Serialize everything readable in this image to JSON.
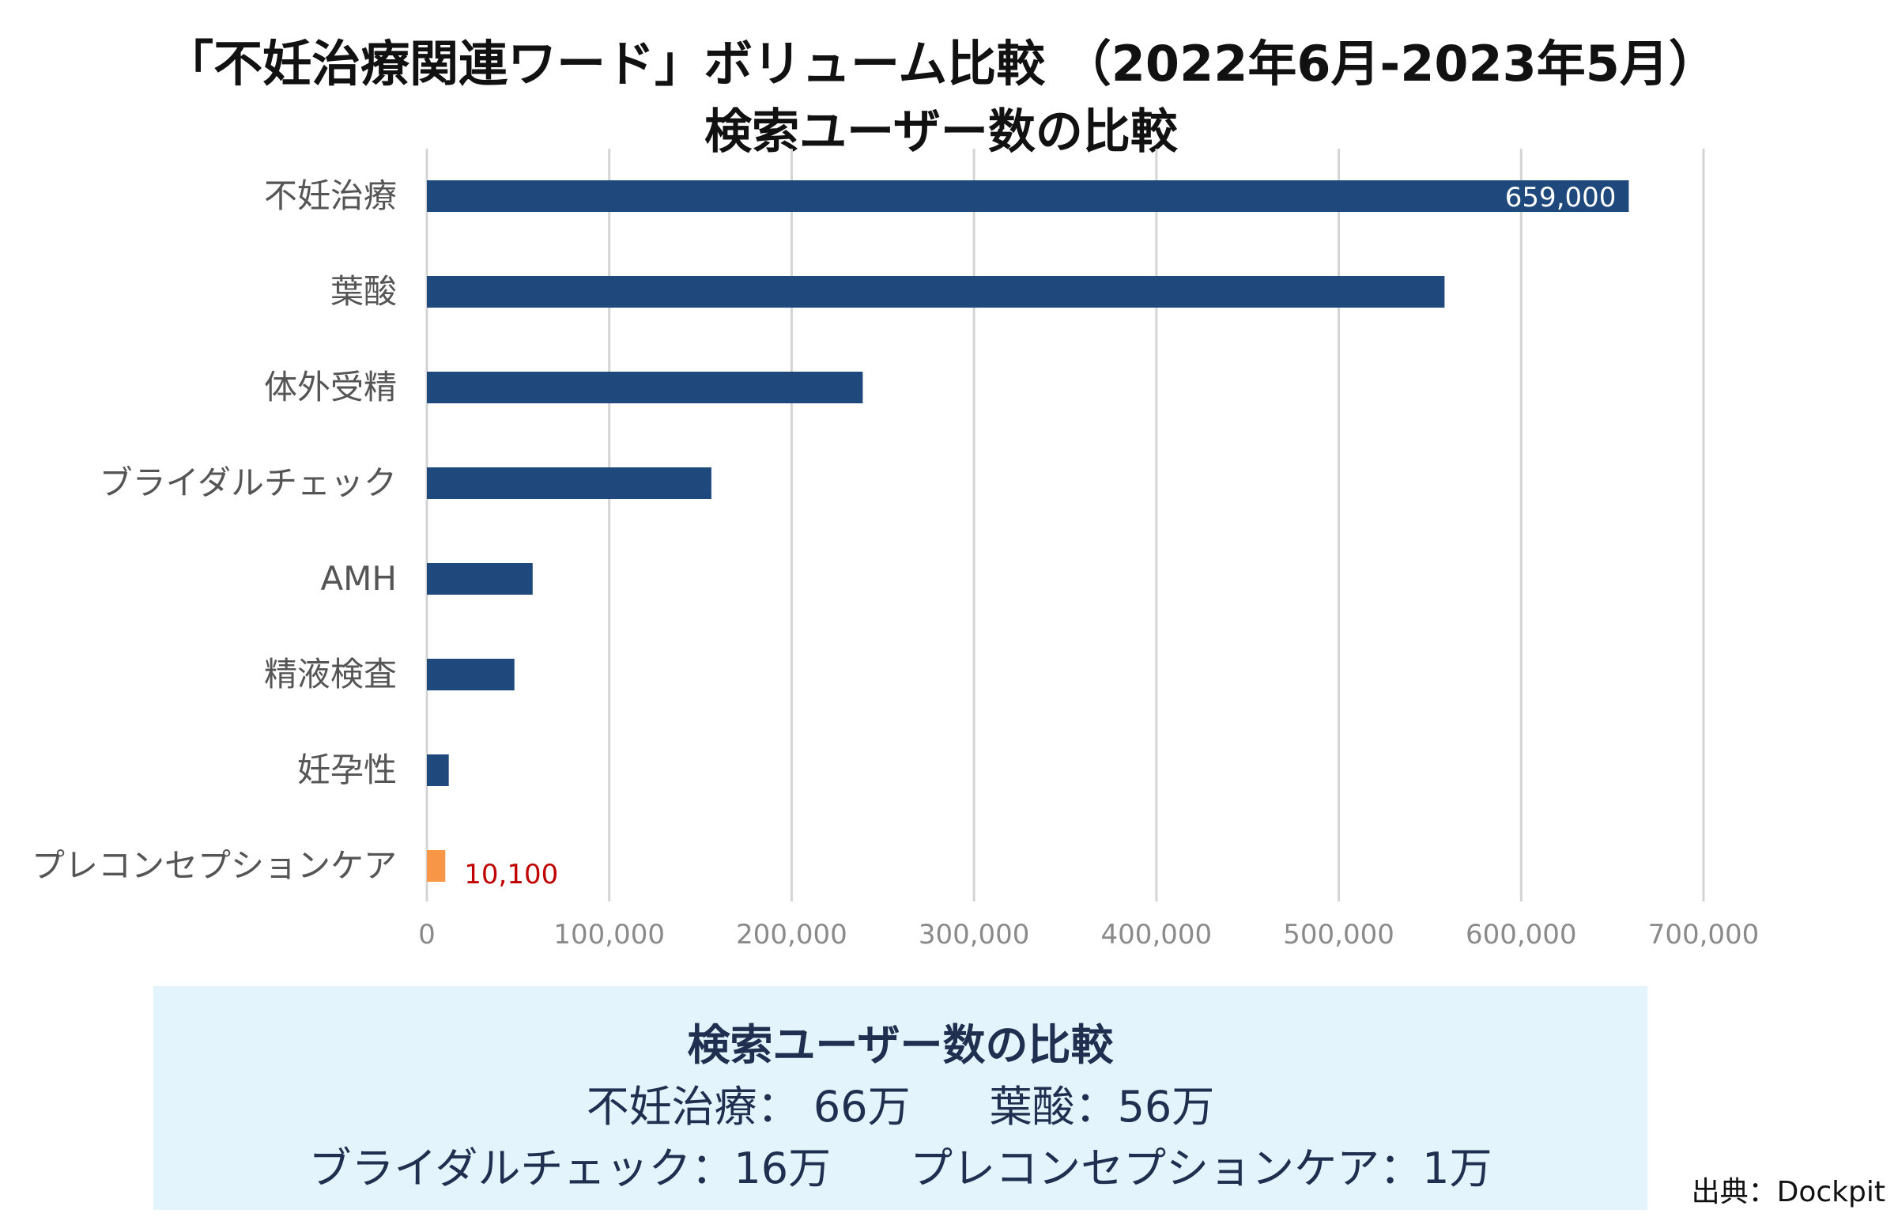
{
  "title": {
    "line1": "「不妊治療関連ワード」ボリューム比較 （2022年6月-2023年5月）",
    "line2": "検索ユーザー数の比較"
  },
  "chart_data": {
    "type": "bar",
    "orientation": "horizontal",
    "categories": [
      "不妊治療",
      "葉酸",
      "体外受精",
      "ブライダルチェック",
      "AMH",
      "精液検査",
      "妊孕性",
      "プレコンセプションケア"
    ],
    "values": [
      659000,
      558000,
      239000,
      156000,
      58000,
      48000,
      12000,
      10100
    ],
    "data_labels": {
      "不妊治療": "659,000",
      "プレコンセプションケア": "10,100"
    },
    "xlim": [
      0,
      700000
    ],
    "x_ticks": [
      0,
      100000,
      200000,
      300000,
      400000,
      500000,
      600000,
      700000
    ],
    "x_tick_labels": [
      "0",
      "100,000",
      "200,000",
      "300,000",
      "400,000",
      "500,000",
      "600,000",
      "700,000"
    ],
    "grid": "vertical",
    "bar_color": "#1f497d",
    "highlight_color": "#f79646",
    "highlight_category": "プレコンセプションケア",
    "label_color_highlight": "#c00000"
  },
  "summary": {
    "title": "検索ユーザー数の比較",
    "row1": [
      "不妊治療： 66万",
      "葉酸：56万"
    ],
    "row2": [
      "ブライダルチェック：16万",
      "プレコンセプションケア：1万"
    ]
  },
  "source": "出典：Dockpit"
}
